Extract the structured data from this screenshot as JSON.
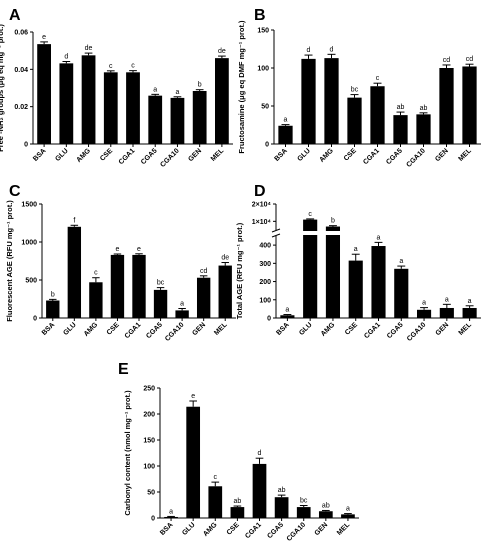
{
  "chart_data": [
    {
      "panel": "A",
      "type": "bar",
      "ylabel": "Free -NH₂ groups (μg eq mg⁻¹ prot.)",
      "categories": [
        "BSA",
        "GLU",
        "AMG",
        "CSE",
        "CGA1",
        "CGA5",
        "CGA10",
        "GEN",
        "MEL"
      ],
      "values": [
        0.0535,
        0.0432,
        0.0475,
        0.0384,
        0.0384,
        0.0259,
        0.0247,
        0.0284,
        0.046
      ],
      "errors": [
        0.0012,
        0.001,
        0.0012,
        0.0008,
        0.0009,
        0.0007,
        0.0006,
        0.0007,
        0.0011
      ],
      "letters": [
        "e",
        "d",
        "de",
        "c",
        "c",
        "a",
        "a",
        "b",
        "de"
      ],
      "ylim": [
        0,
        0.06
      ],
      "yticks": [
        0,
        0.02,
        0.04,
        0.06
      ],
      "ytick_labels": [
        "0",
        "0.02",
        "0.04",
        "0.06"
      ],
      "grid": false
    },
    {
      "panel": "B",
      "type": "bar",
      "ylabel": "Fructosamine (μg eq DMF mg⁻¹ prot.)",
      "categories": [
        "BSA",
        "GLU",
        "AMG",
        "CSE",
        "CGA1",
        "CGA5",
        "CGA10",
        "GEN",
        "MEL"
      ],
      "values": [
        24,
        112,
        113,
        61,
        76,
        38,
        39,
        100,
        102
      ],
      "errors": [
        1.5,
        5,
        5,
        4,
        4,
        4,
        2,
        4,
        3
      ],
      "letters": [
        "a",
        "d",
        "d",
        "bc",
        "c",
        "ab",
        "ab",
        "cd",
        "cd"
      ],
      "ylim": [
        0,
        150
      ],
      "yticks": [
        0,
        50,
        100,
        150
      ],
      "ytick_labels": [
        "0",
        "50",
        "100",
        "150"
      ],
      "grid": false
    },
    {
      "panel": "C",
      "type": "bar",
      "ylabel": "Fluorescent AGE (RFU mg⁻¹ prot.)",
      "categories": [
        "BSA",
        "GLU",
        "AMG",
        "CSE",
        "CGA1",
        "CGA5",
        "CGA10",
        "GEN",
        "MEL"
      ],
      "values": [
        230,
        1200,
        470,
        830,
        830,
        370,
        100,
        530,
        690
      ],
      "errors": [
        15,
        20,
        60,
        12,
        15,
        30,
        25,
        25,
        40
      ],
      "letters": [
        "b",
        "f",
        "c",
        "e",
        "e",
        "bc",
        "a",
        "cd",
        "de"
      ],
      "ylim": [
        0,
        1500
      ],
      "yticks": [
        0,
        500,
        1000,
        1500
      ],
      "ytick_labels": [
        "0",
        "500",
        "1000",
        "1500"
      ],
      "grid": false
    },
    {
      "panel": "D",
      "type": "bar",
      "ylabel": "Total AGE (RFU mg⁻¹ prot.)",
      "categories": [
        "BSA",
        "GLU",
        "AMG",
        "CSE",
        "CGA1",
        "CGA5",
        "CGA10",
        "GEN",
        "MEL"
      ],
      "values": [
        15,
        11000,
        7000,
        315,
        395,
        270,
        45,
        55,
        55
      ],
      "errors": [
        4,
        400,
        500,
        35,
        20,
        15,
        12,
        20,
        12
      ],
      "letters": [
        "a",
        "c",
        "b",
        "a",
        "a",
        "a",
        "a",
        "a",
        "a"
      ],
      "axis_break": true,
      "lower_ylim": [
        0,
        450
      ],
      "lower_yticks": [
        0,
        100,
        200,
        300,
        400
      ],
      "lower_ytick_labels": [
        "0",
        "100",
        "200",
        "300",
        "400"
      ],
      "upper_ylim": [
        5000,
        20000
      ],
      "upper_yticks": [
        10000,
        20000
      ],
      "upper_ytick_labels": [
        "1×10⁴",
        "2×10⁴"
      ],
      "grid": false
    },
    {
      "panel": "E",
      "type": "bar",
      "ylabel": "Carbonyl content (nmol mg⁻¹ prot.)",
      "categories": [
        "BSA",
        "GLU",
        "AMG",
        "CSE",
        "CGA1",
        "CGA5",
        "CGA10",
        "GEN",
        "MEL"
      ],
      "values": [
        2,
        214,
        61,
        21,
        104,
        40,
        21,
        13,
        7
      ],
      "errors": [
        1,
        11,
        8,
        2,
        11,
        4,
        3,
        1.5,
        1.5
      ],
      "letters": [
        "a",
        "e",
        "c",
        "ab",
        "d",
        "ab",
        "bc",
        "ab",
        "a"
      ],
      "ylim": [
        0,
        250
      ],
      "yticks": [
        0,
        50,
        100,
        150,
        200,
        250
      ],
      "ytick_labels": [
        "0",
        "50",
        "100",
        "150",
        "200",
        "250"
      ],
      "grid": false
    }
  ]
}
